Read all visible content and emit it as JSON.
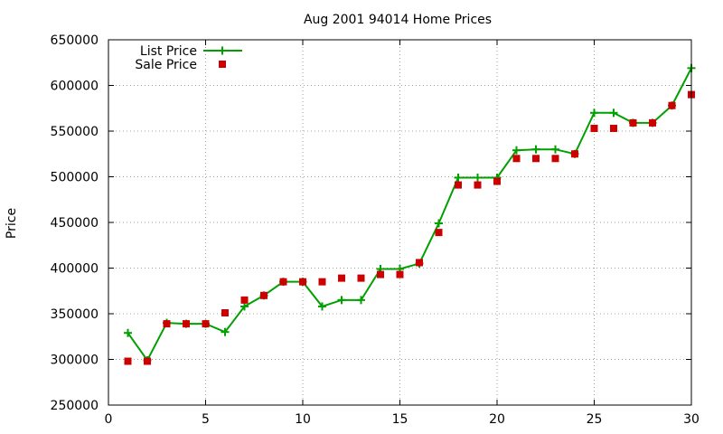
{
  "chart_data": {
    "type": "line",
    "title": "Aug 2001 94014 Home Prices",
    "xlabel": "",
    "ylabel": "Price",
    "xlim": [
      0,
      30
    ],
    "ylim": [
      250000,
      650000
    ],
    "x_ticks": [
      0,
      5,
      10,
      15,
      20,
      25,
      30
    ],
    "y_ticks": [
      250000,
      300000,
      350000,
      400000,
      450000,
      500000,
      550000,
      600000,
      650000
    ],
    "x_tick_labels": [
      "0",
      "5",
      "10",
      "15",
      "20",
      "25",
      "30"
    ],
    "y_tick_labels": [
      "250000",
      "300000",
      "350000",
      "400000",
      "450000",
      "500000",
      "550000",
      "600000",
      "650000"
    ],
    "grid": true,
    "legend": {
      "position": "top-left"
    },
    "series": [
      {
        "name": "List Price",
        "style": "line-with-plus-markers",
        "color": "#00a000",
        "x": [
          1,
          2,
          3,
          4,
          5,
          6,
          7,
          8,
          9,
          10,
          11,
          12,
          13,
          14,
          15,
          16,
          17,
          18,
          19,
          20,
          21,
          22,
          23,
          24,
          25,
          26,
          27,
          28,
          29,
          30
        ],
        "values": [
          329000,
          299000,
          340000,
          339000,
          339000,
          330000,
          358000,
          370000,
          385000,
          385000,
          358000,
          365000,
          365000,
          399000,
          399000,
          405000,
          449000,
          499000,
          499000,
          499000,
          529000,
          530000,
          530000,
          525000,
          570000,
          570000,
          559000,
          559000,
          578000,
          619000
        ]
      },
      {
        "name": "Sale Price",
        "style": "square-markers",
        "color": "#cc0000",
        "x": [
          1,
          2,
          3,
          4,
          5,
          6,
          7,
          8,
          9,
          10,
          11,
          12,
          13,
          14,
          15,
          16,
          17,
          18,
          19,
          20,
          21,
          22,
          23,
          24,
          25,
          26,
          27,
          28,
          29,
          30
        ],
        "values": [
          298000,
          298000,
          339000,
          339000,
          339000,
          351000,
          365000,
          370000,
          385000,
          385000,
          385000,
          389000,
          389000,
          393000,
          393000,
          406000,
          439000,
          491000,
          491000,
          495000,
          520000,
          520000,
          520000,
          525000,
          553000,
          553000,
          559000,
          559000,
          578000,
          590000
        ]
      }
    ]
  }
}
